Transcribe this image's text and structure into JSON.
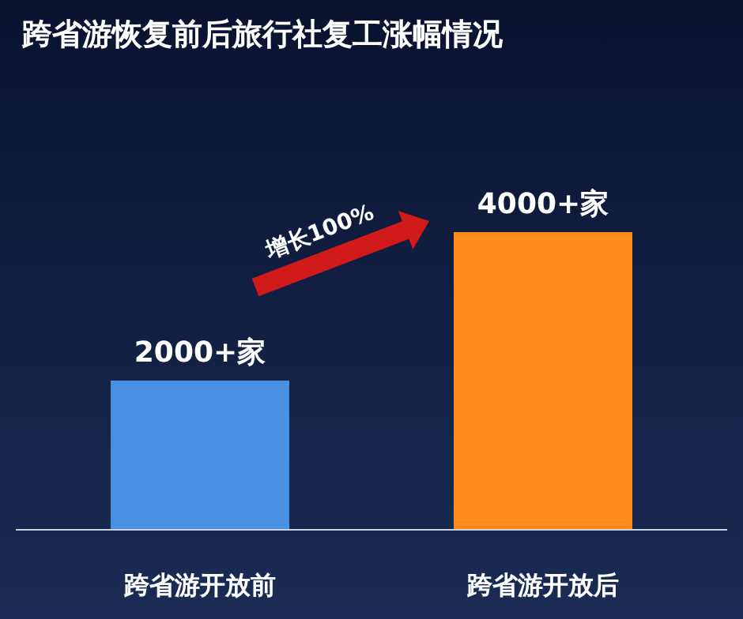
{
  "chart_data": {
    "type": "bar",
    "title": "跨省游恢复前后旅行社复工涨幅情况",
    "categories": [
      "跨省游开放前",
      "跨省游开放后"
    ],
    "values": [
      2000,
      4000
    ],
    "colors": [
      "#4a90e2",
      "#ff8c1a"
    ],
    "value_labels": [
      "2000+家",
      "4000+家"
    ],
    "annotations": [
      "增长100%"
    ]
  }
}
